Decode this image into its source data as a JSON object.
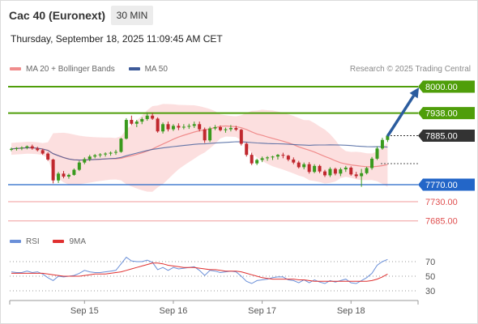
{
  "header": {
    "title": "Cac 40 (Euronext)",
    "interval": "30 MIN",
    "datetime": "Thursday, September 18, 2025 11:09:45 AM CET",
    "copyright": "Research © 2025 Trading Central"
  },
  "colors": {
    "ma20": "#f08c8c",
    "ma50": "#3d5a99",
    "bollinger": "#fbd9d9",
    "resistance": "#4f9e0a",
    "current": "#333333",
    "pivot": "#2366c8",
    "support": "#f09a9a",
    "arrow": "#2b5c9e",
    "candle_up": "#3a9a1e",
    "candle_down": "#c0282e",
    "rsi": "#6a8fd8",
    "rsi_ma": "#e03030"
  },
  "chart_data": [
    {
      "type": "candlestick",
      "legend": [
        {
          "name": "MA 20 + Bollinger Bands",
          "color": "#f08c8c"
        },
        {
          "name": "MA 50",
          "color": "#3d5a99"
        }
      ],
      "ylim": [
        7670,
        8010
      ],
      "levels": [
        {
          "value": 8000.0,
          "label": "8000.00",
          "kind": "resistance"
        },
        {
          "value": 7938.0,
          "label": "7938.00",
          "kind": "resistance"
        },
        {
          "value": 7885.0,
          "label": "7885.00",
          "kind": "current"
        },
        {
          "value": 7770.0,
          "label": "7770.00",
          "kind": "pivot"
        },
        {
          "value": 7730.0,
          "label": "7730.00",
          "kind": "support"
        },
        {
          "value": 7685.0,
          "label": "7685.00",
          "kind": "support"
        }
      ],
      "x_ticks": [
        {
          "index": 14,
          "label": "Sep 15"
        },
        {
          "index": 31,
          "label": "Sep 16"
        },
        {
          "index": 48,
          "label": "Sep 17"
        },
        {
          "index": 65,
          "label": "Sep 18"
        }
      ],
      "ohlc": [
        [
          7852,
          7857,
          7849,
          7854
        ],
        [
          7854,
          7858,
          7850,
          7856
        ],
        [
          7856,
          7860,
          7851,
          7857
        ],
        [
          7857,
          7862,
          7853,
          7860
        ],
        [
          7860,
          7864,
          7852,
          7855
        ],
        [
          7855,
          7859,
          7848,
          7851
        ],
        [
          7851,
          7854,
          7840,
          7843
        ],
        [
          7843,
          7846,
          7826,
          7829
        ],
        [
          7829,
          7831,
          7773,
          7780
        ],
        [
          7780,
          7800,
          7774,
          7796
        ],
        [
          7796,
          7802,
          7785,
          7789
        ],
        [
          7789,
          7796,
          7784,
          7793
        ],
        [
          7793,
          7808,
          7791,
          7805
        ],
        [
          7805,
          7826,
          7802,
          7822
        ],
        [
          7822,
          7834,
          7818,
          7830
        ],
        [
          7830,
          7840,
          7825,
          7836
        ],
        [
          7836,
          7842,
          7832,
          7839
        ],
        [
          7839,
          7844,
          7834,
          7841
        ],
        [
          7841,
          7846,
          7836,
          7843
        ],
        [
          7843,
          7848,
          7838,
          7845
        ],
        [
          7845,
          7852,
          7840,
          7847
        ],
        [
          7847,
          7880,
          7845,
          7878
        ],
        [
          7878,
          7926,
          7876,
          7922
        ],
        [
          7922,
          7932,
          7910,
          7913
        ],
        [
          7913,
          7922,
          7905,
          7918
        ],
        [
          7918,
          7928,
          7912,
          7924
        ],
        [
          7924,
          7940,
          7920,
          7932
        ],
        [
          7932,
          7938,
          7922,
          7925
        ],
        [
          7925,
          7928,
          7892,
          7895
        ],
        [
          7895,
          7916,
          7890,
          7912
        ],
        [
          7912,
          7918,
          7895,
          7900
        ],
        [
          7900,
          7912,
          7896,
          7908
        ],
        [
          7908,
          7914,
          7898,
          7904
        ],
        [
          7904,
          7912,
          7900,
          7906
        ],
        [
          7906,
          7913,
          7901,
          7908
        ],
        [
          7908,
          7918,
          7903,
          7912
        ],
        [
          7912,
          7918,
          7895,
          7900
        ],
        [
          7900,
          7904,
          7868,
          7874
        ],
        [
          7874,
          7906,
          7870,
          7902
        ],
        [
          7902,
          7910,
          7898,
          7905
        ],
        [
          7905,
          7909,
          7895,
          7898
        ],
        [
          7898,
          7904,
          7892,
          7900
        ],
        [
          7900,
          7910,
          7895,
          7903
        ],
        [
          7903,
          7908,
          7896,
          7899
        ],
        [
          7899,
          7901,
          7862,
          7866
        ],
        [
          7866,
          7869,
          7836,
          7840
        ],
        [
          7840,
          7845,
          7816,
          7820
        ],
        [
          7820,
          7831,
          7816,
          7828
        ],
        [
          7828,
          7836,
          7823,
          7832
        ],
        [
          7832,
          7837,
          7826,
          7834
        ],
        [
          7834,
          7838,
          7828,
          7836
        ],
        [
          7836,
          7842,
          7829,
          7840
        ],
        [
          7840,
          7845,
          7832,
          7838
        ],
        [
          7838,
          7840,
          7825,
          7829
        ],
        [
          7829,
          7834,
          7818,
          7822
        ],
        [
          7822,
          7826,
          7808,
          7811
        ],
        [
          7811,
          7822,
          7806,
          7818
        ],
        [
          7818,
          7823,
          7796,
          7800
        ],
        [
          7800,
          7818,
          7797,
          7814
        ],
        [
          7814,
          7817,
          7797,
          7801
        ],
        [
          7801,
          7805,
          7788,
          7792
        ],
        [
          7792,
          7811,
          7788,
          7807
        ],
        [
          7807,
          7810,
          7792,
          7796
        ],
        [
          7796,
          7810,
          7790,
          7806
        ],
        [
          7806,
          7814,
          7800,
          7810
        ],
        [
          7810,
          7813,
          7791,
          7794
        ],
        [
          7794,
          7800,
          7785,
          7790
        ],
        [
          7790,
          7807,
          7765,
          7797
        ],
        [
          7797,
          7812,
          7794,
          7809
        ],
        [
          7809,
          7835,
          7805,
          7831
        ],
        [
          7831,
          7860,
          7828,
          7855
        ],
        [
          7855,
          7880,
          7852,
          7875
        ],
        [
          7875,
          7890,
          7870,
          7885
        ]
      ],
      "arrow": {
        "from": [
          72,
          7884
        ],
        "to": [
          78,
          7998
        ]
      }
    },
    {
      "type": "line",
      "legend": [
        {
          "name": "RSI",
          "color": "#6a8fd8"
        },
        {
          "name": "9MA",
          "color": "#e03030"
        }
      ],
      "ylim": [
        20,
        80
      ],
      "y_ticks": [
        30,
        50,
        70
      ],
      "series": [
        {
          "name": "RSI",
          "values": [
            56,
            55,
            55,
            57,
            55,
            56,
            53,
            48,
            44,
            50,
            49,
            50,
            51,
            54,
            58,
            56,
            55,
            55,
            56,
            57,
            58,
            67,
            76,
            71,
            70,
            70,
            72,
            69,
            59,
            62,
            58,
            62,
            60,
            61,
            62,
            63,
            58,
            51,
            58,
            57,
            55,
            56,
            57,
            56,
            50,
            43,
            40,
            44,
            45,
            46,
            48,
            49,
            49,
            45,
            44,
            41,
            45,
            41,
            45,
            42,
            40,
            44,
            42,
            44,
            46,
            41,
            40,
            44,
            48,
            54,
            65,
            70,
            73
          ]
        },
        {
          "name": "9MA",
          "values": [
            54,
            54,
            54,
            54,
            54,
            54,
            54,
            53,
            52,
            51,
            50,
            50,
            50,
            50,
            51,
            52,
            53,
            53,
            53,
            54,
            55,
            56,
            58,
            60,
            62,
            64,
            66,
            68,
            68,
            67,
            65,
            64,
            63,
            62,
            62,
            62,
            61,
            60,
            59,
            59,
            58,
            57,
            57,
            57,
            56,
            54,
            52,
            50,
            48,
            47,
            46,
            46,
            46,
            46,
            46,
            45,
            45,
            44,
            43,
            43,
            43,
            43,
            43,
            43,
            43,
            43,
            43,
            43,
            43,
            44,
            46,
            49,
            53
          ]
        }
      ]
    }
  ]
}
